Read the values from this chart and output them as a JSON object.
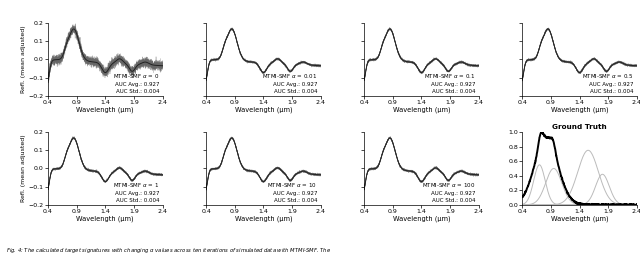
{
  "panels": [
    {
      "alpha": "0",
      "auc_avg": "0.927",
      "auc_std": "0.004",
      "row": 0,
      "col": 0,
      "noisy": true
    },
    {
      "alpha": "0.01",
      "auc_avg": "0.927",
      "auc_std": "0.004",
      "row": 0,
      "col": 1,
      "noisy": false
    },
    {
      "alpha": "0.1",
      "auc_avg": "0.927",
      "auc_std": "0.004",
      "row": 0,
      "col": 2,
      "noisy": false
    },
    {
      "alpha": "0.5",
      "auc_avg": "0.927",
      "auc_std": "0.004",
      "row": 0,
      "col": 3,
      "noisy": false
    },
    {
      "alpha": "1",
      "auc_avg": "0.927",
      "auc_std": "0.004",
      "row": 1,
      "col": 0,
      "noisy": false
    },
    {
      "alpha": "10",
      "auc_avg": "0.927",
      "auc_std": "0.004",
      "row": 1,
      "col": 1,
      "noisy": false
    },
    {
      "alpha": "100",
      "auc_avg": "0.927",
      "auc_std": "0.004",
      "row": 1,
      "col": 2,
      "noisy": false
    }
  ],
  "xlim": [
    0.4,
    2.4
  ],
  "xticks": [
    0.4,
    0.9,
    1.4,
    1.9,
    2.4
  ],
  "ylim_main": [
    -0.2,
    0.2
  ],
  "yticks_main": [
    -0.2,
    -0.1,
    0.0,
    0.1,
    0.2
  ],
  "ylim_gt": [
    0.0,
    1.0
  ],
  "yticks_gt": [
    0.0,
    0.2,
    0.4,
    0.6,
    0.8,
    1.0
  ],
  "xlabel": "Wavelength (μm)",
  "ylabel": "Refl. (mean adjusted)",
  "figsize": [
    6.4,
    2.56
  ],
  "dpi": 100
}
